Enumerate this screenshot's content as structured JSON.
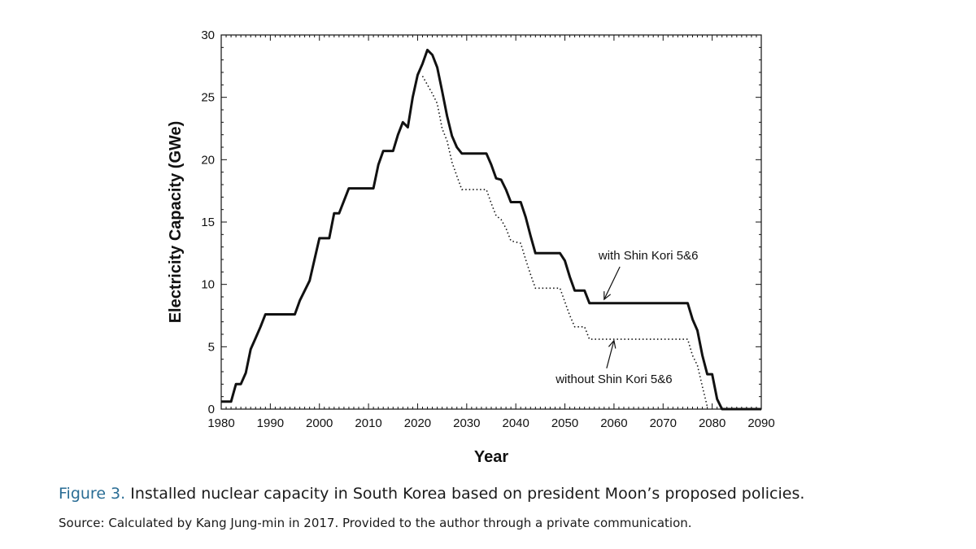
{
  "chart_data": {
    "type": "line",
    "xlabel": "Year",
    "ylabel": "Electricity Capacity (GWe)",
    "xlim": [
      1980,
      2090
    ],
    "ylim": [
      0,
      30
    ],
    "x_ticks": [
      1980,
      1990,
      2000,
      2010,
      2020,
      2030,
      2040,
      2050,
      2060,
      2070,
      2080,
      2090
    ],
    "y_ticks": [
      0,
      5,
      10,
      15,
      20,
      25,
      30
    ],
    "grid": false,
    "series": [
      {
        "name": "with Shin Kori 5&6",
        "style": "solid",
        "color": "#111111",
        "points": [
          [
            1980,
            0.6
          ],
          [
            1982,
            0.6
          ],
          [
            1983,
            2.0
          ],
          [
            1984,
            2.0
          ],
          [
            1985,
            2.9
          ],
          [
            1986,
            4.8
          ],
          [
            1987,
            5.7
          ],
          [
            1988,
            6.6
          ],
          [
            1989,
            7.6
          ],
          [
            1995,
            7.6
          ],
          [
            1996,
            8.7
          ],
          [
            1998,
            10.3
          ],
          [
            1999,
            12.0
          ],
          [
            2000,
            13.7
          ],
          [
            2002,
            13.7
          ],
          [
            2003,
            15.7
          ],
          [
            2004,
            15.7
          ],
          [
            2005,
            16.7
          ],
          [
            2006,
            17.7
          ],
          [
            2011,
            17.7
          ],
          [
            2012,
            19.6
          ],
          [
            2013,
            20.7
          ],
          [
            2015,
            20.7
          ],
          [
            2016,
            22.0
          ],
          [
            2017,
            23.0
          ],
          [
            2018,
            22.6
          ],
          [
            2019,
            25.0
          ],
          [
            2020,
            26.8
          ],
          [
            2021,
            27.7
          ],
          [
            2022,
            28.8
          ],
          [
            2023,
            28.4
          ],
          [
            2024,
            27.4
          ],
          [
            2025,
            25.5
          ],
          [
            2026,
            23.5
          ],
          [
            2027,
            21.9
          ],
          [
            2028,
            21.0
          ],
          [
            2029,
            20.5
          ],
          [
            2034,
            20.5
          ],
          [
            2035,
            19.6
          ],
          [
            2036,
            18.5
          ],
          [
            2037,
            18.4
          ],
          [
            2038,
            17.6
          ],
          [
            2039,
            16.6
          ],
          [
            2041,
            16.6
          ],
          [
            2042,
            15.4
          ],
          [
            2043,
            13.9
          ],
          [
            2044,
            12.5
          ],
          [
            2049,
            12.5
          ],
          [
            2050,
            11.9
          ],
          [
            2051,
            10.6
          ],
          [
            2052,
            9.5
          ],
          [
            2054,
            9.5
          ],
          [
            2055,
            8.5
          ],
          [
            2075,
            8.5
          ],
          [
            2076,
            7.2
          ],
          [
            2077,
            6.3
          ],
          [
            2078,
            4.3
          ],
          [
            2079,
            2.8
          ],
          [
            2080,
            2.8
          ],
          [
            2081,
            0.8
          ],
          [
            2082,
            0.0
          ],
          [
            2090,
            0.0
          ]
        ]
      },
      {
        "name": "without Shin Kori 5&6",
        "style": "dotted",
        "color": "#111111",
        "points": [
          [
            2021,
            26.7
          ],
          [
            2023,
            25.3
          ],
          [
            2024,
            24.5
          ],
          [
            2025,
            22.5
          ],
          [
            2026,
            21.5
          ],
          [
            2027,
            19.8
          ],
          [
            2028,
            18.7
          ],
          [
            2029,
            17.6
          ],
          [
            2034,
            17.6
          ],
          [
            2035,
            16.5
          ],
          [
            2036,
            15.5
          ],
          [
            2037,
            15.2
          ],
          [
            2038,
            14.5
          ],
          [
            2039,
            13.5
          ],
          [
            2041,
            13.3
          ],
          [
            2042,
            12.0
          ],
          [
            2043,
            10.8
          ],
          [
            2044,
            9.7
          ],
          [
            2049,
            9.7
          ],
          [
            2050,
            8.6
          ],
          [
            2051,
            7.5
          ],
          [
            2052,
            6.6
          ],
          [
            2054,
            6.6
          ],
          [
            2055,
            5.6
          ],
          [
            2075,
            5.6
          ],
          [
            2076,
            4.3
          ],
          [
            2077,
            3.5
          ],
          [
            2078,
            1.8
          ],
          [
            2079,
            0.2
          ]
        ]
      }
    ],
    "annotations": [
      {
        "text": "with Shin Kori 5&6",
        "x": 2067,
        "y": 12.0,
        "arrow_to": [
          2058,
          8.8
        ]
      },
      {
        "text": "without Shin Kori 5&6",
        "x": 2060,
        "y": 2.1,
        "arrow_to": [
          2060,
          5.5
        ]
      }
    ]
  },
  "caption": {
    "label": "Figure 3.",
    "text": " Installed nuclear capacity in South Korea based on president Moon’s proposed policies."
  },
  "source": "Source: Calculated by Kang Jung-min in 2017. Provided to the author through a private communication."
}
